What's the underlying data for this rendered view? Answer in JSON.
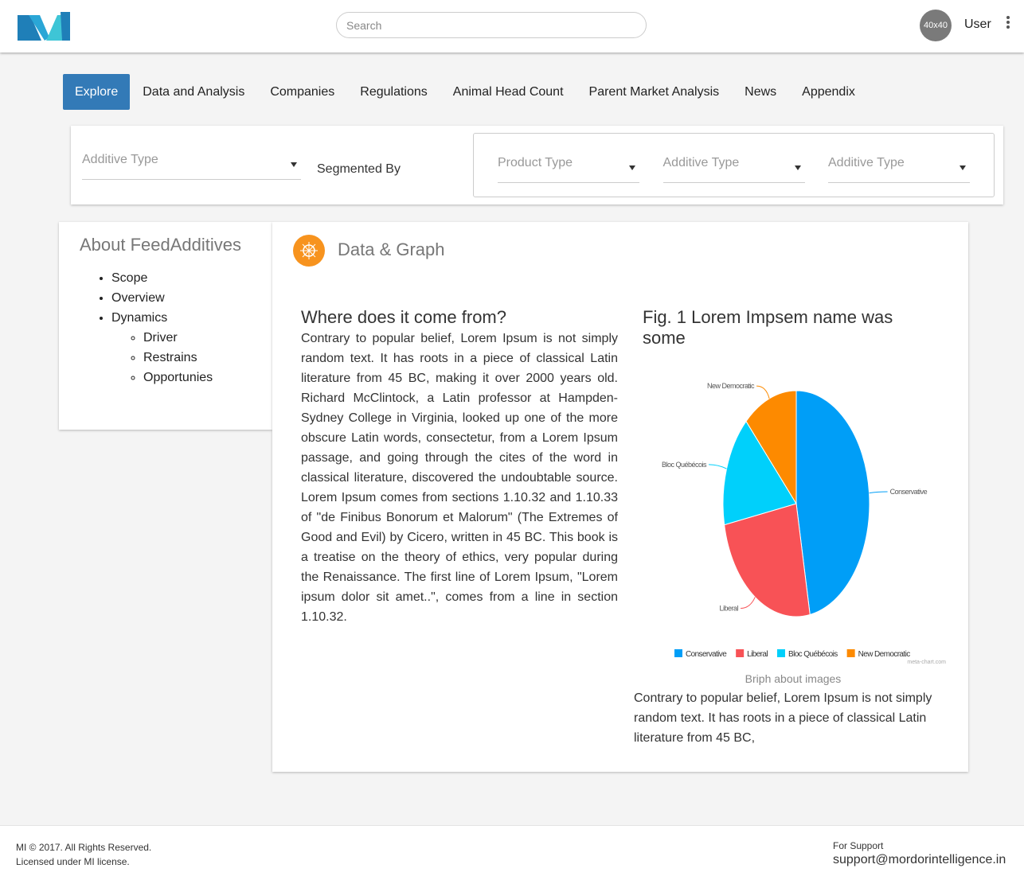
{
  "header": {
    "search_placeholder": "Search",
    "avatar": "40x40",
    "user": "User"
  },
  "nav": [
    "Explore",
    "Data and Analysis",
    "Companies",
    "Regulations",
    "Animal Head Count",
    "Parent Market Analysis",
    "News",
    "Appendix"
  ],
  "filters": {
    "left_select": "Additive Type",
    "segmented_by": "Segmented By",
    "selects": [
      "Product Type",
      "Additive Type",
      "Additive Type"
    ]
  },
  "sidebar": {
    "title": "About FeedAdditives",
    "items": [
      "Scope",
      "Overview",
      "Dynamics"
    ],
    "subitems": [
      "Driver",
      "Restrains",
      "Opportunies"
    ]
  },
  "content": {
    "section_title": "Data & Graph",
    "article_title": "Where does it come from?",
    "article_text": "Contrary to popular belief, Lorem Ipsum is not simply random text. It has roots in a piece of classical Latin literature from 45 BC, making it over 2000 years old. Richard McClintock, a Latin professor at Hampden-Sydney College in Virginia, looked up one of the more obscure Latin words, consectetur, from a Lorem Ipsum passage, and going through the cites of the word in classical literature, discovered the undoubtable source. Lorem Ipsum comes from sections 1.10.32 and 1.10.33 of \"de Finibus Bonorum et Malorum\" (The Extremes of Good and Evil) by Cicero, written in 45 BC. This book is a treatise on the theory of ethics, very popular during the Renaissance. The first line of Lorem Ipsum, \"Lorem ipsum dolor sit amet..\", comes from a line in section 1.10.32.",
    "figure_title": "Fig. 1 Lorem Impsem name was some",
    "caption": "Briph about images",
    "figure_text": "Contrary to popular belief, Lorem Ipsum is not simply random text. It has roots in a piece of classical Latin literature from 45 BC,"
  },
  "chart_data": {
    "type": "pie",
    "categories": [
      "Conservative",
      "Liberal",
      "Bloc Québécois",
      "New Democratic"
    ],
    "values": [
      47,
      25,
      16,
      12
    ],
    "colors": [
      "#009ef7",
      "#f85256",
      "#00d0fb",
      "#fd8a00"
    ],
    "legend": "bottom",
    "credit": "meta-chart.com"
  },
  "footer": {
    "copyright": "MI © 2017. All Rights Reserved.",
    "license": "Licensed under MI license.",
    "support_label": "For Support",
    "support_email": "support@mordorintelligence.in"
  }
}
